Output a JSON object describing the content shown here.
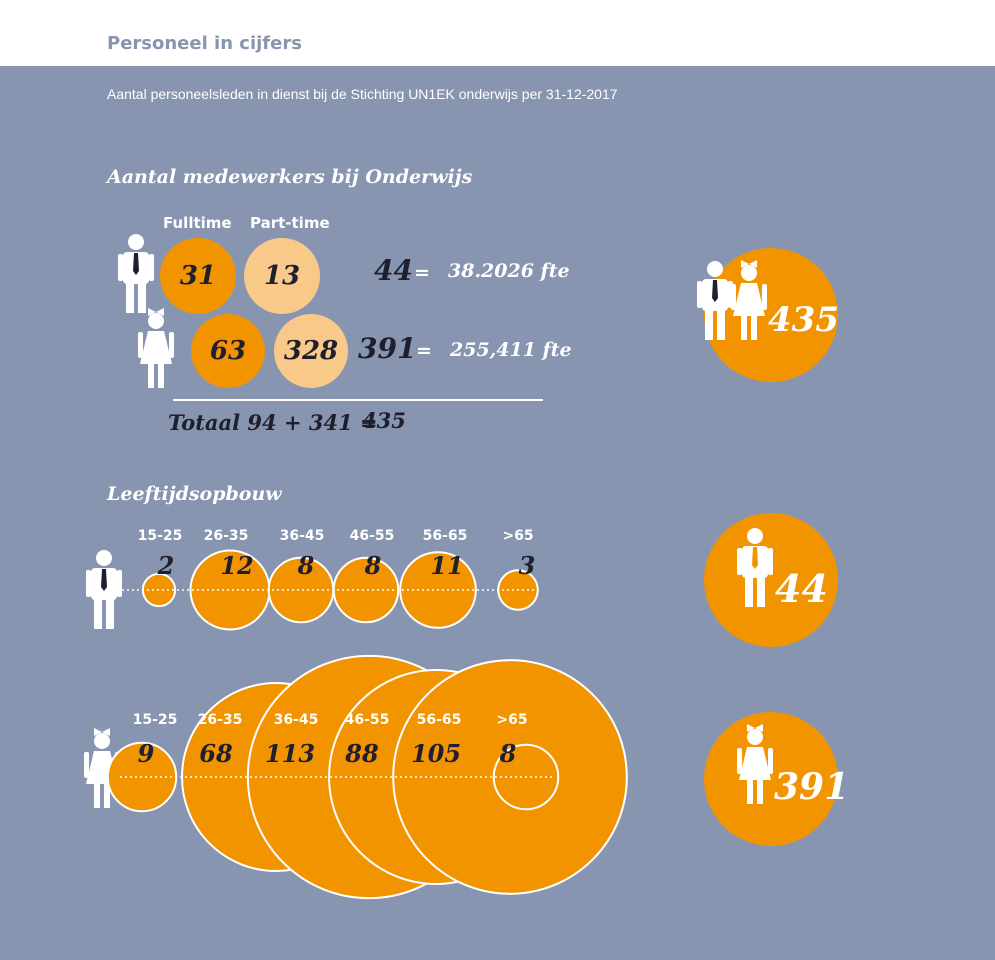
{
  "header": {
    "title": "Personeel in cijfers"
  },
  "subtitle": "Aantal personeelsleden in dienst bij de Stichting UN1EK onderwijs per 31-12-2017",
  "section1": {
    "title": "Aantal medewerkers bij Onderwijs",
    "col_fulltime": "Fulltime",
    "col_parttime": "Part-time",
    "male": {
      "fulltime": "31",
      "parttime": "13",
      "total": "44",
      "eq1": "=",
      "eq2": "=",
      "fte": "38.2026 fte"
    },
    "female": {
      "fulltime": "63",
      "parttime": "328",
      "total": "391",
      "eq1": "=",
      "fte": "255,411 fte"
    },
    "total_label": "Totaal 94 + 341  =",
    "total_value": "435",
    "overall": "435"
  },
  "section2": {
    "title": "Leeftijdsopbouw",
    "male_total": "44",
    "female_total": "391"
  },
  "colors": {
    "background": "#8795b0",
    "orange": "#f29400",
    "light_orange": "#f9c98a",
    "dark_text": "#1f1f2e"
  },
  "chart_data": [
    {
      "type": "bubble",
      "series_label": "man",
      "categories": [
        "15-25",
        "26-35",
        "36-45",
        "46-55",
        "56-65",
        ">65"
      ],
      "values": [
        2,
        12,
        8,
        8,
        11,
        3
      ]
    },
    {
      "type": "bubble",
      "series_label": "vrouw",
      "categories": [
        "15-25",
        "26-35",
        "36-45",
        "46-55",
        "56-65",
        ">65"
      ],
      "values": [
        9,
        68,
        113,
        88,
        105,
        8
      ]
    }
  ]
}
